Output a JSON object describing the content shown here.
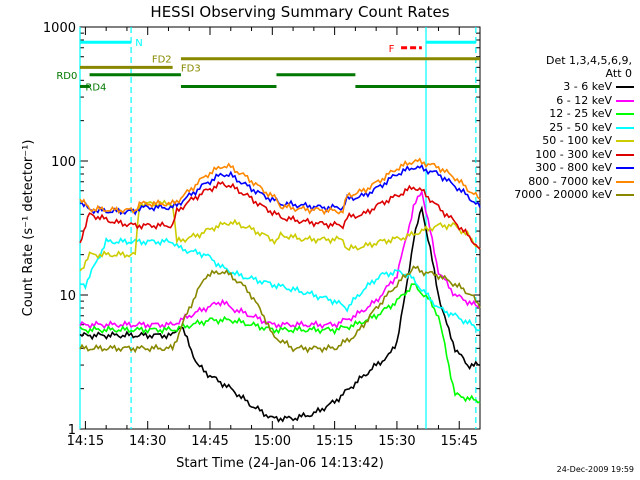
{
  "chart_data": {
    "type": "line",
    "title": "HESSI Observing Summary Count Rates",
    "xlabel": "Start Time (24-Jan-06 14:13:42)",
    "ylabel": "Count Rate (s⁻¹ detector⁻¹)",
    "x_ticks": [
      "14:15",
      "14:30",
      "14:45",
      "15:00",
      "15:15",
      "15:30",
      "15:45"
    ],
    "x_tick_minutes": [
      15,
      30,
      45,
      60,
      75,
      90,
      105
    ],
    "xlim_minutes": [
      13.7,
      110
    ],
    "y_ticks": [
      "1",
      "10",
      "100",
      "1000"
    ],
    "y_scale": "log",
    "ylim": [
      1,
      1000
    ],
    "legend_header": [
      "Det 1,3,4,5,6,9,",
      "Att 0"
    ],
    "series": [
      {
        "name": "3 - 6 keV",
        "color": "#000000",
        "points": [
          [
            13.7,
            5
          ],
          [
            22,
            5
          ],
          [
            36,
            5
          ],
          [
            38,
            6
          ],
          [
            42,
            3
          ],
          [
            45,
            2.5
          ],
          [
            50,
            2
          ],
          [
            55,
            1.5
          ],
          [
            60,
            1.2
          ],
          [
            65,
            1.2
          ],
          [
            70,
            1.3
          ],
          [
            75,
            1.6
          ],
          [
            80,
            2.2
          ],
          [
            85,
            3
          ],
          [
            88,
            3.5
          ],
          [
            90,
            4.5
          ],
          [
            92,
            10
          ],
          [
            94,
            26
          ],
          [
            96,
            45
          ],
          [
            98,
            22
          ],
          [
            100,
            10
          ],
          [
            102,
            6
          ],
          [
            104,
            4
          ],
          [
            107,
            3
          ],
          [
            110,
            3
          ]
        ]
      },
      {
        "name": "6 - 12 keV",
        "color": "#ff00ff",
        "points": [
          [
            13.7,
            6
          ],
          [
            22,
            6
          ],
          [
            36,
            6
          ],
          [
            40,
            7
          ],
          [
            44,
            8
          ],
          [
            48,
            9
          ],
          [
            50,
            8
          ],
          [
            55,
            7
          ],
          [
            60,
            6
          ],
          [
            65,
            6
          ],
          [
            75,
            6
          ],
          [
            80,
            7
          ],
          [
            85,
            9
          ],
          [
            90,
            14
          ],
          [
            92,
            25
          ],
          [
            94,
            45
          ],
          [
            96,
            60
          ],
          [
            98,
            30
          ],
          [
            100,
            15
          ],
          [
            104,
            10
          ],
          [
            110,
            8
          ]
        ]
      },
      {
        "name": "12 - 25 keV",
        "color": "#00ff00",
        "points": [
          [
            13.7,
            5.5
          ],
          [
            22,
            5.5
          ],
          [
            36,
            5.5
          ],
          [
            45,
            6.5
          ],
          [
            50,
            6.5
          ],
          [
            55,
            6
          ],
          [
            60,
            5.5
          ],
          [
            75,
            5.5
          ],
          [
            80,
            6
          ],
          [
            85,
            7
          ],
          [
            90,
            9
          ],
          [
            94,
            12
          ],
          [
            98,
            9
          ],
          [
            100,
            7
          ],
          [
            104,
            1.8
          ],
          [
            110,
            1.6
          ]
        ]
      },
      {
        "name": "25 - 50 keV",
        "color": "#00ffff",
        "points": [
          [
            13.7,
            12
          ],
          [
            15,
            12
          ],
          [
            20,
            25
          ],
          [
            36,
            25
          ],
          [
            38,
            22
          ],
          [
            44,
            20
          ],
          [
            48,
            16
          ],
          [
            52,
            14
          ],
          [
            56,
            13
          ],
          [
            60,
            12
          ],
          [
            65,
            11
          ],
          [
            70,
            10
          ],
          [
            75,
            9
          ],
          [
            78,
            8
          ],
          [
            82,
            11
          ],
          [
            86,
            14
          ],
          [
            90,
            15
          ],
          [
            93,
            14
          ],
          [
            96,
            11
          ],
          [
            100,
            8
          ],
          [
            104,
            7
          ],
          [
            108,
            6
          ],
          [
            110,
            5.5
          ]
        ]
      },
      {
        "name": "50 - 100 keV",
        "color": "#cccc00",
        "points": [
          [
            13.7,
            15
          ],
          [
            16,
            20
          ],
          [
            22,
            20
          ],
          [
            27,
            20
          ],
          [
            28,
            48
          ],
          [
            36,
            48
          ],
          [
            37,
            25
          ],
          [
            42,
            28
          ],
          [
            46,
            32
          ],
          [
            50,
            35
          ],
          [
            54,
            32
          ],
          [
            58,
            28
          ],
          [
            61,
            25
          ],
          [
            62,
            28
          ],
          [
            68,
            26
          ],
          [
            72,
            26
          ],
          [
            77,
            26
          ],
          [
            78,
            22
          ],
          [
            82,
            23
          ],
          [
            86,
            25
          ],
          [
            92,
            27
          ],
          [
            96,
            30
          ],
          [
            100,
            33
          ],
          [
            104,
            33
          ],
          [
            107,
            28
          ],
          [
            110,
            22
          ]
        ]
      },
      {
        "name": "100 - 300 keV",
        "color": "#dd0000",
        "points": [
          [
            13.7,
            25
          ],
          [
            16,
            40
          ],
          [
            22,
            35
          ],
          [
            27,
            33
          ],
          [
            36,
            33
          ],
          [
            37,
            42
          ],
          [
            40,
            50
          ],
          [
            44,
            60
          ],
          [
            48,
            68
          ],
          [
            50,
            65
          ],
          [
            54,
            55
          ],
          [
            58,
            45
          ],
          [
            61,
            40
          ],
          [
            62,
            38
          ],
          [
            66,
            36
          ],
          [
            72,
            34
          ],
          [
            77,
            33
          ],
          [
            78,
            38
          ],
          [
            82,
            40
          ],
          [
            86,
            48
          ],
          [
            90,
            55
          ],
          [
            94,
            64
          ],
          [
            96,
            60
          ],
          [
            100,
            45
          ],
          [
            104,
            35
          ],
          [
            107,
            28
          ],
          [
            110,
            22
          ]
        ]
      },
      {
        "name": "300 - 800 keV",
        "color": "#0000ff",
        "points": [
          [
            13.7,
            50
          ],
          [
            16,
            43
          ],
          [
            22,
            42
          ],
          [
            27,
            42
          ],
          [
            28,
            45
          ],
          [
            36,
            45
          ],
          [
            37,
            47
          ],
          [
            40,
            55
          ],
          [
            44,
            68
          ],
          [
            48,
            80
          ],
          [
            50,
            78
          ],
          [
            54,
            65
          ],
          [
            58,
            55
          ],
          [
            61,
            50
          ],
          [
            62,
            48
          ],
          [
            66,
            47
          ],
          [
            72,
            45
          ],
          [
            77,
            45
          ],
          [
            78,
            52
          ],
          [
            82,
            55
          ],
          [
            86,
            65
          ],
          [
            90,
            80
          ],
          [
            94,
            90
          ],
          [
            96,
            88
          ],
          [
            100,
            80
          ],
          [
            104,
            65
          ],
          [
            107,
            55
          ],
          [
            110,
            45
          ]
        ]
      },
      {
        "name": "800 - 7000 keV",
        "color": "#ff8800",
        "points": [
          [
            13.7,
            52
          ],
          [
            16,
            44
          ],
          [
            22,
            43
          ],
          [
            27,
            43
          ],
          [
            28,
            48
          ],
          [
            36,
            48
          ],
          [
            37,
            50
          ],
          [
            40,
            60
          ],
          [
            44,
            78
          ],
          [
            48,
            92
          ],
          [
            50,
            90
          ],
          [
            54,
            75
          ],
          [
            58,
            60
          ],
          [
            61,
            52
          ],
          [
            62,
            46
          ],
          [
            66,
            44
          ],
          [
            72,
            43
          ],
          [
            77,
            42
          ],
          [
            78,
            55
          ],
          [
            82,
            60
          ],
          [
            86,
            72
          ],
          [
            90,
            88
          ],
          [
            94,
            100
          ],
          [
            96,
            98
          ],
          [
            100,
            90
          ],
          [
            104,
            75
          ],
          [
            107,
            62
          ],
          [
            110,
            52
          ]
        ]
      },
      {
        "name": "7000 - 20000 keV",
        "color": "#888800",
        "points": [
          [
            13.7,
            4
          ],
          [
            22,
            4
          ],
          [
            36,
            4
          ],
          [
            40,
            8
          ],
          [
            44,
            14
          ],
          [
            48,
            15
          ],
          [
            50,
            14
          ],
          [
            54,
            11
          ],
          [
            58,
            7
          ],
          [
            60,
            5
          ],
          [
            65,
            4
          ],
          [
            75,
            4
          ],
          [
            80,
            5
          ],
          [
            85,
            8
          ],
          [
            90,
            12
          ],
          [
            94,
            16
          ],
          [
            96,
            15
          ],
          [
            100,
            14
          ],
          [
            104,
            12
          ],
          [
            108,
            10
          ],
          [
            110,
            8
          ]
        ]
      }
    ],
    "vertical_lines": [
      {
        "minute": 13.7,
        "style": "solid",
        "color": "#00ffff"
      },
      {
        "minute": 26,
        "style": "dashed",
        "color": "#00ffff"
      },
      {
        "minute": 97,
        "style": "solid",
        "color": "#00ffff"
      },
      {
        "minute": 109,
        "style": "dashed",
        "color": "#00ffff"
      }
    ],
    "annotation_bars": [
      {
        "label": "N",
        "color": "#00ffff",
        "y": 770,
        "segments": [
          [
            13.7,
            26
          ],
          [
            97,
            109
          ]
        ],
        "label_at": 27
      },
      {
        "label": "F",
        "color": "#ff0000",
        "y": 700,
        "segments": [
          [
            91,
            96
          ]
        ],
        "dashed": true,
        "label_at": 88
      },
      {
        "label": "FD2",
        "color": "#888800",
        "y": 580,
        "segments": [
          [
            38,
            110
          ]
        ],
        "label_at": 31
      },
      {
        "label": "FD3",
        "color": "#888800",
        "y": 500,
        "segments": [
          [
            13.7,
            36
          ]
        ],
        "label_at": 38
      },
      {
        "label": "RD0",
        "color": "#007700",
        "y": 440,
        "segments": [
          [
            16,
            38
          ],
          [
            61,
            80
          ]
        ],
        "label_at": 8
      },
      {
        "label": "RD4",
        "color": "#007700",
        "y": 360,
        "segments": [
          [
            13.7,
            16
          ],
          [
            38,
            61
          ],
          [
            80,
            110
          ]
        ],
        "label_at": 15
      }
    ]
  },
  "timestamp": "24-Dec-2009 19:59"
}
